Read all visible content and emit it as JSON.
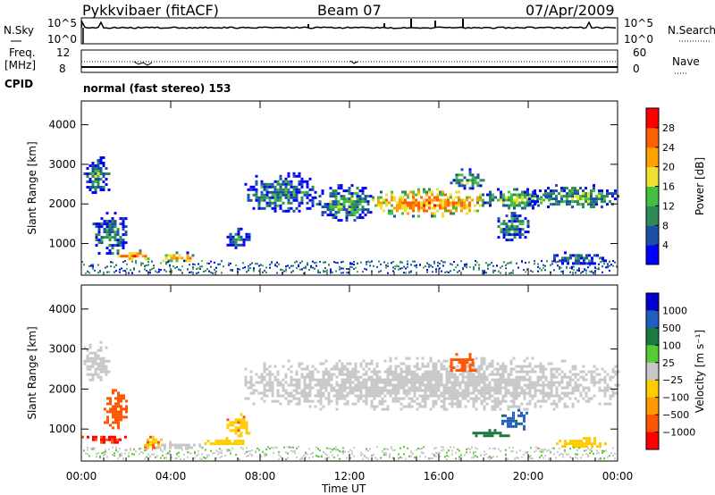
{
  "header": {
    "radar": "Pykkvibaer (fitACF)",
    "beam": "Beam 07",
    "date": "07/Apr/2009"
  },
  "status_panels": {
    "nsky_label": "N.Sky",
    "nsky_ticks": [
      "10^5",
      "10^0"
    ],
    "nsearch_label": "N.Search",
    "nsearch_ticks": [
      "10^5",
      "10^0"
    ],
    "freq_label": "Freq.",
    "freq_unit": "[MHz]",
    "freq_ticks": [
      "12",
      "8"
    ],
    "nave_label": "Nave",
    "nave_ticks": [
      "60",
      "0"
    ],
    "cpid_label": "CPID",
    "cpid_value": "normal (fast stereo) 153"
  },
  "colors": {
    "power_scale": [
      "#0000ff",
      "#1c50a6",
      "#2e8b57",
      "#44c040",
      "#f0e030",
      "#ffa000",
      "#ff6000",
      "#ff0000"
    ],
    "velocity_scale": [
      "#0000cc",
      "#1f5fbf",
      "#1a7a40",
      "#55cc33",
      "#c8c8c8",
      "#ffcc00",
      "#ff9900",
      "#ff5500",
      "#ff0000"
    ],
    "ground_scatter": "#c8c8c8"
  },
  "chart_data": [
    {
      "type": "heatmap",
      "panel": "power",
      "ylabel": "Slant Range [km]",
      "xlabel": "Time UT",
      "x_ticks": [
        "00:00",
        "04:00",
        "08:00",
        "12:00",
        "16:00",
        "20:00",
        "00:00"
      ],
      "y_ticks": [
        1000,
        2000,
        3000,
        4000
      ],
      "ylim": [
        200,
        4600
      ],
      "xlim": [
        0,
        24
      ],
      "colorbar": {
        "label": "Power [dB]",
        "ticks": [
          "4",
          "8",
          "12",
          "16",
          "20",
          "24",
          "28"
        ],
        "range": [
          0,
          30
        ]
      },
      "regions": [
        {
          "t0": 0.1,
          "t1": 1.2,
          "r0": 2200,
          "r1": 3200,
          "value": 10
        },
        {
          "t0": 0.5,
          "t1": 2.0,
          "r0": 700,
          "r1": 1800,
          "value": 10
        },
        {
          "t0": 1.5,
          "t1": 3.2,
          "r0": 600,
          "r1": 850,
          "value": 22
        },
        {
          "t0": 3.5,
          "t1": 5.2,
          "r0": 550,
          "r1": 800,
          "value": 20
        },
        {
          "t0": 6.5,
          "t1": 7.5,
          "r0": 900,
          "r1": 1400,
          "value": 10
        },
        {
          "t0": 7.3,
          "t1": 10.5,
          "r0": 1800,
          "r1": 2800,
          "value": 10
        },
        {
          "t0": 10.5,
          "t1": 13.0,
          "r0": 1600,
          "r1": 2500,
          "value": 12
        },
        {
          "t0": 13.0,
          "t1": 18.0,
          "r0": 1700,
          "r1": 2400,
          "value": 22
        },
        {
          "t0": 16.5,
          "t1": 18.0,
          "r0": 2400,
          "r1": 2900,
          "value": 12
        },
        {
          "t0": 18.0,
          "t1": 21.0,
          "r0": 1900,
          "r1": 2400,
          "value": 14
        },
        {
          "t0": 18.5,
          "t1": 20.0,
          "r0": 1100,
          "r1": 1800,
          "value": 10
        },
        {
          "t0": 20.0,
          "t1": 24.0,
          "r0": 1900,
          "r1": 2500,
          "value": 12
        },
        {
          "t0": 21.0,
          "t1": 23.5,
          "r0": 500,
          "r1": 800,
          "value": 8
        }
      ]
    },
    {
      "type": "heatmap",
      "panel": "velocity",
      "ylabel": "Slant Range [km]",
      "xlabel": "Time UT",
      "x_ticks": [
        "00:00",
        "04:00",
        "08:00",
        "12:00",
        "16:00",
        "20:00",
        "00:00"
      ],
      "y_ticks": [
        1000,
        2000,
        3000,
        4000
      ],
      "ylim": [
        200,
        4600
      ],
      "xlim": [
        0,
        24
      ],
      "colorbar": {
        "label": "Velocity [m s⁻¹]",
        "ticks": [
          "1000",
          "500",
          "100",
          "25",
          "−25",
          "−100",
          "−500",
          "−1000"
        ],
        "range": [
          -1000,
          1000
        ]
      },
      "regions": [
        {
          "t0": 0.1,
          "t1": 1.2,
          "r0": 2200,
          "r1": 3200,
          "value": 0,
          "gs": true
        },
        {
          "t0": 0.0,
          "t1": 2.0,
          "r0": 650,
          "r1": 900,
          "value": -600
        },
        {
          "t0": 1.0,
          "t1": 2.0,
          "r0": 1000,
          "r1": 2000,
          "value": -150
        },
        {
          "t0": 2.8,
          "t1": 3.6,
          "r0": 500,
          "r1": 900,
          "value": -100
        },
        {
          "t0": 3.2,
          "t1": 5.5,
          "r0": 500,
          "r1": 700,
          "value": 10,
          "gs": true
        },
        {
          "t0": 5.5,
          "t1": 7.3,
          "r0": 600,
          "r1": 800,
          "value": -60
        },
        {
          "t0": 6.5,
          "t1": 7.5,
          "r0": 800,
          "r1": 1400,
          "value": -80
        },
        {
          "t0": 7.3,
          "t1": 24.0,
          "r0": 1500,
          "r1": 2800,
          "value": 0,
          "gs": true
        },
        {
          "t0": 16.5,
          "t1": 17.7,
          "r0": 2400,
          "r1": 2900,
          "value": -400
        },
        {
          "t0": 18.8,
          "t1": 20.0,
          "r0": 1000,
          "r1": 1500,
          "value": 700
        },
        {
          "t0": 17.5,
          "t1": 19.2,
          "r0": 800,
          "r1": 1000,
          "value": 150
        },
        {
          "t0": 21.0,
          "t1": 23.5,
          "r0": 550,
          "r1": 800,
          "value": -60
        }
      ]
    }
  ]
}
